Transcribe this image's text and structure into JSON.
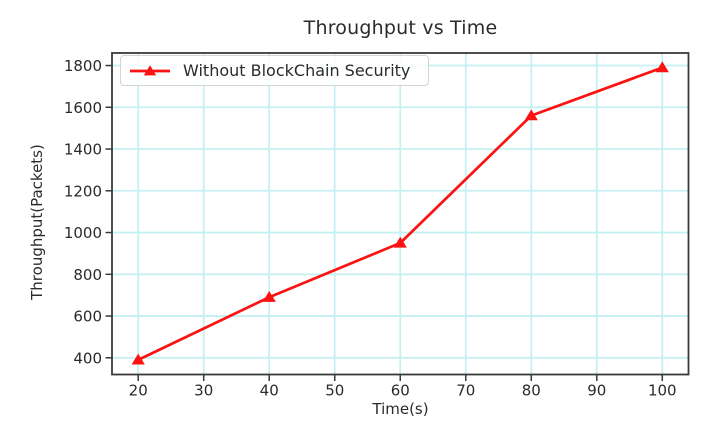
{
  "chart_data": {
    "type": "line",
    "title": "Throughput vs Time",
    "xlabel": "Time(s)",
    "ylabel": "Throughput(Packets)",
    "x": [
      20,
      40,
      60,
      80,
      100
    ],
    "series": [
      {
        "name": "Without BlockChain Security",
        "values": [
          390,
          690,
          950,
          1560,
          1790
        ],
        "color": "#fb1212",
        "marker": "triangle-up"
      }
    ],
    "xlim": [
      16,
      104
    ],
    "ylim": [
      320,
      1860
    ],
    "xticks": [
      20,
      30,
      40,
      50,
      60,
      70,
      80,
      90,
      100
    ],
    "yticks": [
      400,
      600,
      800,
      1000,
      1200,
      1400,
      1600,
      1800
    ],
    "grid": true,
    "grid_color": "#c6f0f2",
    "axis_color": "#3a3a3a",
    "text_color": "#2b2b2b",
    "legend_position": "upper-left"
  }
}
